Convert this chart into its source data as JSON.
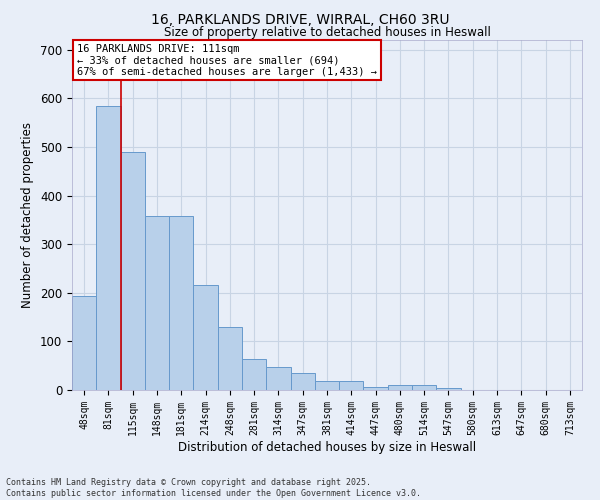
{
  "title1": "16, PARKLANDS DRIVE, WIRRAL, CH60 3RU",
  "title2": "Size of property relative to detached houses in Heswall",
  "xlabel": "Distribution of detached houses by size in Heswall",
  "ylabel": "Number of detached properties",
  "categories": [
    "48sqm",
    "81sqm",
    "115sqm",
    "148sqm",
    "181sqm",
    "214sqm",
    "248sqm",
    "281sqm",
    "314sqm",
    "347sqm",
    "381sqm",
    "414sqm",
    "447sqm",
    "480sqm",
    "514sqm",
    "547sqm",
    "580sqm",
    "613sqm",
    "647sqm",
    "680sqm",
    "713sqm"
  ],
  "values": [
    193,
    585,
    490,
    357,
    357,
    215,
    130,
    63,
    47,
    35,
    18,
    18,
    7,
    11,
    11,
    5,
    0,
    0,
    0,
    0,
    0
  ],
  "bar_color": "#b8d0ea",
  "bar_edge_color": "#6699cc",
  "bg_color": "#e8eef8",
  "grid_color": "#c8d4e4",
  "vline_color": "#cc0000",
  "annotation_text": "16 PARKLANDS DRIVE: 111sqm\n← 33% of detached houses are smaller (694)\n67% of semi-detached houses are larger (1,433) →",
  "annotation_box_color": "#ffffff",
  "annotation_border_color": "#cc0000",
  "footer_text": "Contains HM Land Registry data © Crown copyright and database right 2025.\nContains public sector information licensed under the Open Government Licence v3.0.",
  "ylim": [
    0,
    720
  ],
  "yticks": [
    0,
    100,
    200,
    300,
    400,
    500,
    600,
    700
  ]
}
